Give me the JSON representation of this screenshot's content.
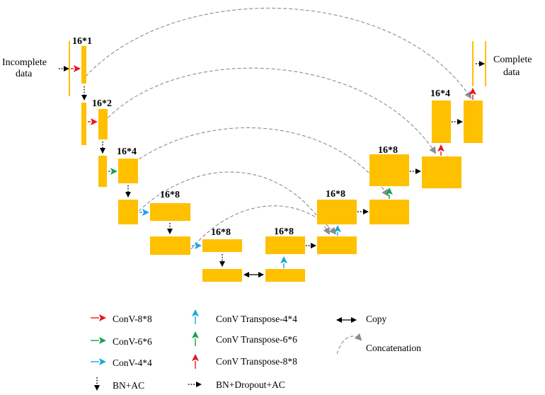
{
  "colors": {
    "block": "#FFC000",
    "conv8": "#E5191B",
    "conv6": "#17A34A",
    "conv4": "#1AA7DF",
    "transpose4": "#1AA7DF",
    "transpose6": "#17A34A",
    "transpose8": "#E5191B",
    "concat": "#8C8C8C"
  },
  "io": {
    "input_line1": "Incomplete",
    "input_line2": "data",
    "output_line1": "Complete",
    "output_line2": "data"
  },
  "encoder_labels": [
    "16*1",
    "16*2",
    "16*4",
    "16*8",
    "16*8"
  ],
  "decoder_labels": [
    "16*8",
    "16*8",
    "16*8",
    "16*4"
  ],
  "legend": {
    "conv8": "ConV-8*8",
    "conv6": "ConV-6*6",
    "conv4": "ConV-4*4",
    "bn_ac": "BN+AC",
    "transpose4": "ConV Transpose-4*4",
    "transpose6": "ConV Transpose-6*6",
    "transpose8": "ConV Transpose-8*8",
    "bn_dropout_ac": "BN+Dropout+AC",
    "copy": "Copy",
    "concatenation": "Concatenation"
  }
}
